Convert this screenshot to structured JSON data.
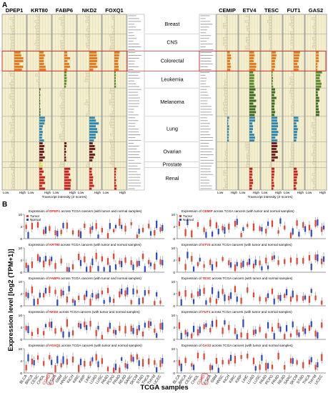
{
  "panel_labels": {
    "a": "A",
    "b": "B"
  },
  "panel_a": {
    "left_genes": [
      "DPEP1",
      "KRT80",
      "FABP6",
      "NKD2",
      "FOXQ1"
    ],
    "right_genes": [
      "CEMIP",
      "ETV4",
      "TESC",
      "FUT1",
      "GAS2"
    ],
    "tissues": [
      "Breast",
      "CNS",
      "Colorectal",
      "Leukemia",
      "Melanoma",
      "Lung",
      "Ovarian",
      "Prostate",
      "Renal"
    ],
    "axis_low": "Low",
    "axis_high": "High",
    "axis_caption": "Transcript intensity (Z scores)"
  },
  "panel_b": {
    "ylabel": "Expression level [log2 (TPM+1)]",
    "xlabel": "TCGA samples",
    "legend": {
      "tumor": "Tumor",
      "normal": "Normal"
    },
    "title_prefix": "Expression of ",
    "title_suffix": " across TCGA cancers (with tumor and normal samples)",
    "left_genes": [
      "DPEP1",
      "KRT80",
      "FABP6",
      "NKD2",
      "FOXQ1"
    ],
    "right_genes": [
      "CEMIP",
      "ETV4",
      "TESC",
      "FUT1",
      "GAS2"
    ],
    "ytick_labels": [
      "0",
      "2",
      "4",
      "6",
      "8",
      "10"
    ],
    "cancer_labels": [
      "BLCA",
      "BRCA",
      "CESC",
      "CHOL",
      "COAD",
      "ESCA",
      "GBM",
      "HNSC",
      "KICH",
      "KIRC",
      "KIRP",
      "LIHC",
      "LUAD",
      "LUSC",
      "PAAD",
      "PCPG",
      "PRAD",
      "READ",
      "SARC",
      "SKCM",
      "STAD",
      "THCA",
      "THYM",
      "UCEC"
    ],
    "highlight_label": "COAD"
  },
  "chart_data": [
    {
      "type": "bar",
      "title": "",
      "xlabel": "Transcript intensity (Z scores)",
      "series": [
        {
          "name": "DPEP1"
        },
        {
          "name": "KRT80"
        },
        {
          "name": "FABP6"
        },
        {
          "name": "NKD2"
        },
        {
          "name": "FOXQ1"
        },
        {
          "name": "CEMIP"
        },
        {
          "name": "ETV4"
        },
        {
          "name": "TESC"
        },
        {
          "name": "FUT1"
        },
        {
          "name": "GAS2"
        }
      ]
    },
    {
      "type": "box",
      "ylabel": "Expression level [log2 (TPM+1)]",
      "xlabel": "TCGA samples",
      "categories": [
        "BLCA",
        "BRCA",
        "CESC",
        "CHOL",
        "COAD",
        "ESCA",
        "GBM",
        "HNSC",
        "KICH",
        "KIRC",
        "KIRP",
        "LIHC",
        "LUAD",
        "LUSC",
        "PAAD",
        "PCPG",
        "PRAD",
        "READ",
        "SARC",
        "SKCM",
        "STAD",
        "THCA",
        "THYM",
        "UCEC"
      ],
      "series": [
        {
          "name": "Tumor",
          "color": "#e8402a"
        },
        {
          "name": "Normal",
          "color": "#2a48c8"
        }
      ]
    }
  ],
  "colors": {
    "panel_bg": "#f4efcf",
    "grid": "#d8d0a4",
    "highlight": "#d92020",
    "tumor": "#e8402a",
    "normal": "#2a48c8",
    "gene_title": "#d92020",
    "tissue": {
      "Breast": "#e6e0b8",
      "CNS": "#e6e0b8",
      "Colorectal": "#e87a1e",
      "Leukemia": "#5e8a2e",
      "Melanoma": "#3f6c22",
      "Lung": "#2f86ae",
      "Ovarian": "#6e1f1f",
      "Prostate": "#d8e23a",
      "Renal": "#c8201c"
    }
  }
}
